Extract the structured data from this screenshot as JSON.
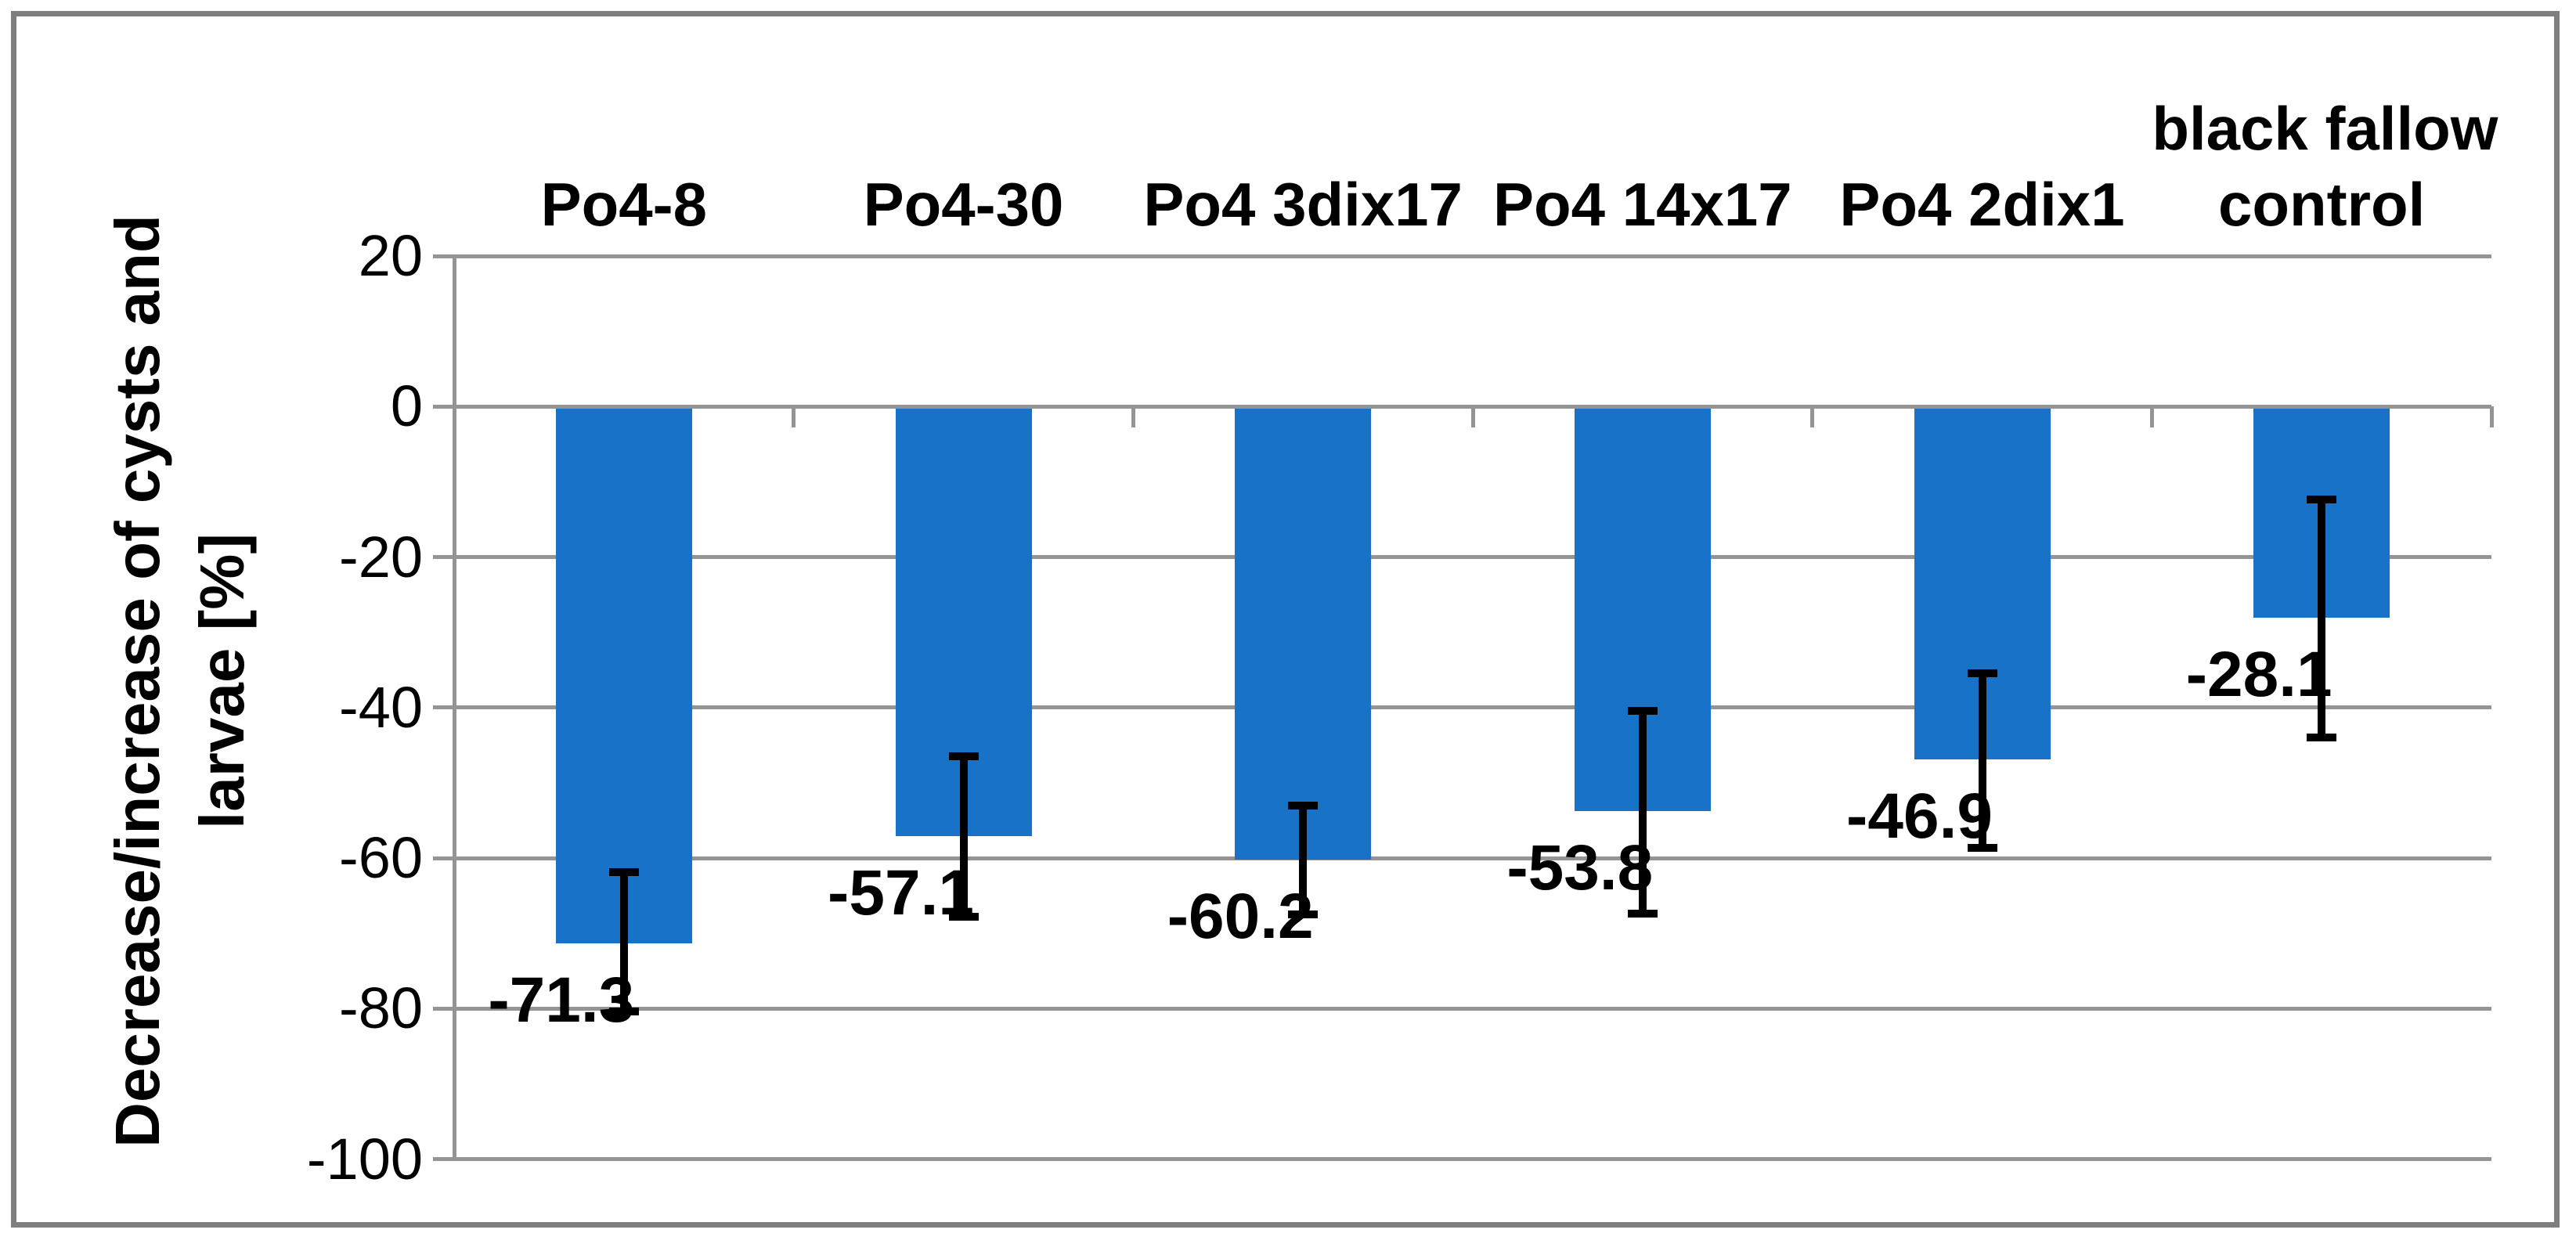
{
  "chart_data": {
    "type": "bar",
    "title": "",
    "xlabel": "",
    "ylabel": "Decrease/increase of cysts and larvae [%]",
    "ylabel_lines": [
      "Decrease/increase of cysts and",
      "larvae [%]"
    ],
    "categories": [
      "Po4-8",
      "Po4-30",
      "Po4 3dix17",
      "Po4 14x17",
      "Po4 2dix1",
      "black fallow control"
    ],
    "category_label_lines": [
      [
        "Po4-8"
      ],
      [
        "Po4-30"
      ],
      [
        "Po4 3dix17"
      ],
      [
        "Po4 14x17"
      ],
      [
        "Po4 2dix1"
      ],
      [
        "black fallow",
        "control"
      ]
    ],
    "values": [
      -71.3,
      -57.1,
      -60.2,
      -53.8,
      -46.9,
      -28.1
    ],
    "data_labels": [
      "-71.3",
      "-57.1",
      "-60.2",
      "-53.8",
      "-46.9",
      "-28.1"
    ],
    "error_bars": [
      {
        "top": -61.9,
        "bottom": -80.4
      },
      {
        "top": -46.5,
        "bottom": -67.8
      },
      {
        "top": -53.0,
        "bottom": -67.5
      },
      {
        "top": -40.4,
        "bottom": -67.4
      },
      {
        "top": -35.4,
        "bottom": -58.6
      },
      {
        "top": -12.4,
        "bottom": -44.0
      }
    ],
    "yticks": [
      20,
      0,
      -20,
      -40,
      -60,
      -80,
      -100
    ],
    "ytick_labels": [
      "20",
      "0",
      "-20",
      "-40",
      "-60",
      "-80",
      "-100"
    ],
    "ylim": [
      -100,
      20
    ],
    "grid": true,
    "legend": false,
    "bar_color": "#1873C8",
    "grid_color": "#949494",
    "axis_color": "#949494",
    "error_bar_color": "#000000",
    "border_color": "#7F7F7F",
    "text_color": "#000000"
  }
}
